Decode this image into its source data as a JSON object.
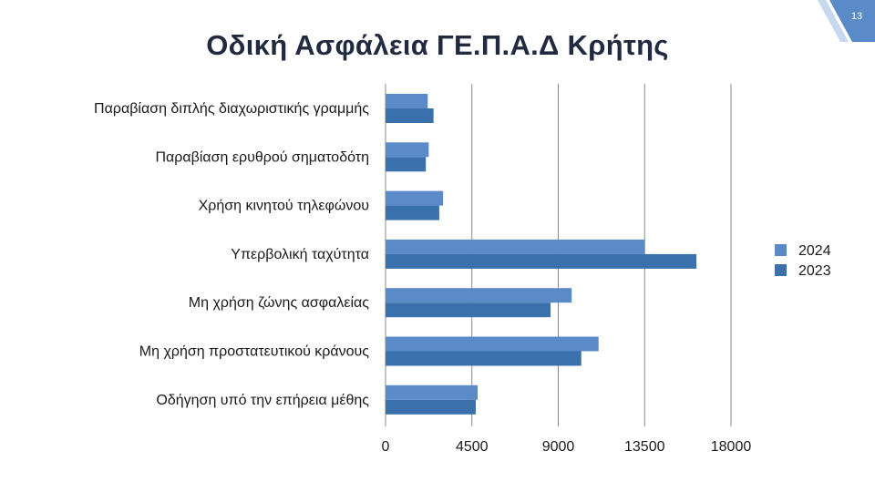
{
  "slide": {
    "title": "Οδική Ασφάλεια ΓΕ.Π.Α.Δ Κρήτης",
    "page_number": "13"
  },
  "colors": {
    "series_2024": "#5b8ac8",
    "series_2023": "#3a71ad",
    "gridline": "#8a8a8a",
    "corner_light": "#c5d8ee",
    "corner_dark": "#5b8ac8"
  },
  "chart_data": {
    "type": "bar",
    "orientation": "horizontal",
    "categories": [
      "Παραβίαση διπλής διαχωριστικής γραμμής",
      "Παραβίαση ερυθρού σηματοδότη",
      "Χρήση κινητού τηλεφώνου",
      "Υπερβολική ταχύτητα",
      "Μη χρήση ζώνης ασφαλείας",
      "Μη χρήση προστατευτικού κράνους",
      "Οδήγηση υπό την επήρεια μέθης"
    ],
    "series": [
      {
        "name": "2024",
        "values": [
          2200,
          2250,
          3000,
          13500,
          9700,
          11100,
          4800
        ]
      },
      {
        "name": "2023",
        "values": [
          2500,
          2100,
          2800,
          16200,
          8600,
          10200,
          4700
        ]
      }
    ],
    "xlim": [
      0,
      18000
    ],
    "xticks": [
      "0",
      "4500",
      "9000",
      "13500",
      "18000"
    ],
    "grid": true,
    "legend": "right",
    "title": "",
    "xlabel": "",
    "ylabel": ""
  }
}
